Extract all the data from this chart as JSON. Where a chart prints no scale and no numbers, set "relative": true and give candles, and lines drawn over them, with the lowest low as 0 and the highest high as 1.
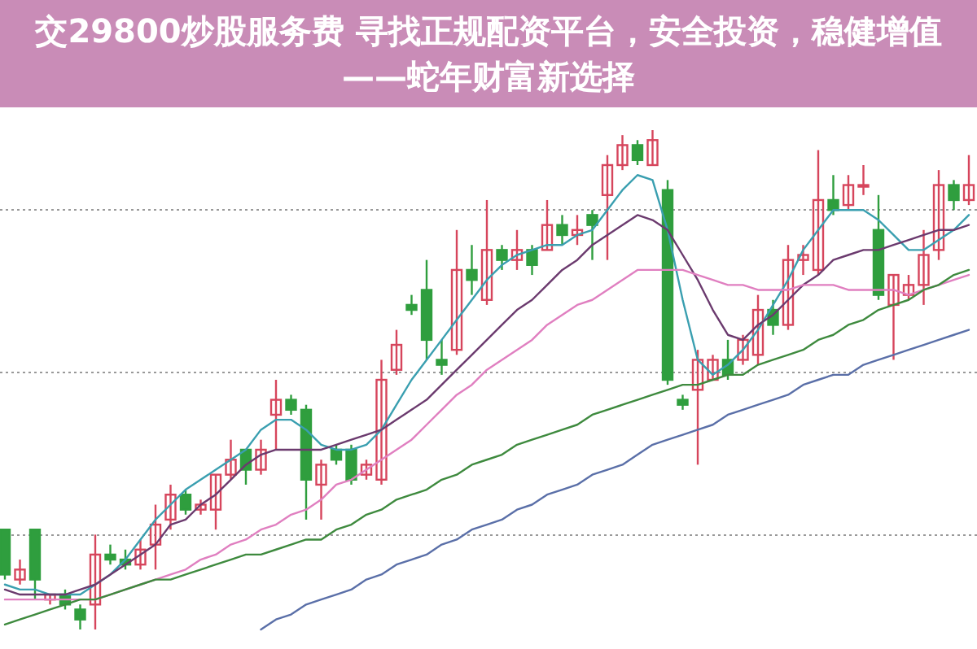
{
  "chart_data": {
    "type": "candlestick",
    "title": "交29800炒股服务费 寻找正规配资平台，安全投资，稳健增值——蛇年财富新选择",
    "relative": true,
    "grid": "y",
    "categories": [
      null,
      null,
      null,
      null,
      null,
      null,
      null,
      null,
      null,
      null,
      null,
      null,
      null,
      null,
      null,
      null,
      null,
      null,
      null,
      null,
      null,
      null,
      null,
      null,
      null,
      null,
      null,
      null,
      null,
      null,
      null,
      null,
      null,
      null,
      null,
      null,
      null,
      null,
      null,
      null,
      null,
      null,
      null,
      null,
      null,
      null,
      null,
      null,
      null,
      null,
      null,
      null,
      null,
      null,
      null,
      null,
      null,
      null,
      null,
      null,
      null,
      null,
      null,
      null,
      null
    ],
    "ohlc": [
      [
        0.2,
        0.2,
        0.1,
        0.11
      ],
      [
        0.1,
        0.14,
        0.09,
        0.12
      ],
      [
        0.2,
        0.2,
        0.06,
        0.1
      ],
      [
        0.06,
        0.07,
        0.05,
        0.07
      ],
      [
        0.07,
        0.08,
        0.04,
        0.05
      ],
      [
        0.04,
        0.05,
        0,
        0.02
      ],
      [
        0.05,
        0.19,
        0,
        0.15
      ],
      [
        0.15,
        0.17,
        0.13,
        0.14
      ],
      [
        0.14,
        0.16,
        0.12,
        0.13
      ],
      [
        0.13,
        0.18,
        0.12,
        0.16
      ],
      [
        0.17,
        0.25,
        0.12,
        0.21
      ],
      [
        0.22,
        0.29,
        0.2,
        0.27
      ],
      [
        0.27,
        0.28,
        0.23,
        0.24
      ],
      [
        0.24,
        0.26,
        0.23,
        0.25
      ],
      [
        0.24,
        0.31,
        0.2,
        0.31
      ],
      [
        0.31,
        0.38,
        0.3,
        0.34
      ],
      [
        0.36,
        0.36,
        0.29,
        0.32
      ],
      [
        0.32,
        0.38,
        0.31,
        0.36
      ],
      [
        0.43,
        0.5,
        0.36,
        0.46
      ],
      [
        0.46,
        0.47,
        0.43,
        0.44
      ],
      [
        0.44,
        0.45,
        0.22,
        0.3
      ],
      [
        0.29,
        0.34,
        0.22,
        0.33
      ],
      [
        0.36,
        0.37,
        0.33,
        0.34
      ],
      [
        0.36,
        0.37,
        0.29,
        0.3
      ],
      [
        0.31,
        0.34,
        0.3,
        0.33
      ],
      [
        0.3,
        0.54,
        0.29,
        0.5
      ],
      [
        0.52,
        0.6,
        0.51,
        0.57
      ],
      [
        0.65,
        0.67,
        0.63,
        0.64
      ],
      [
        0.68,
        0.74,
        0.54,
        0.58
      ],
      [
        0.54,
        0.58,
        0.51,
        0.53
      ],
      [
        0.56,
        0.8,
        0.55,
        0.72
      ],
      [
        0.72,
        0.77,
        0.67,
        0.7
      ],
      [
        0.66,
        0.86,
        0.65,
        0.76
      ],
      [
        0.76,
        0.77,
        0.72,
        0.74
      ],
      [
        0.74,
        0.8,
        0.72,
        0.76
      ],
      [
        0.76,
        0.77,
        0.71,
        0.73
      ],
      [
        0.76,
        0.86,
        0.76,
        0.81
      ],
      [
        0.81,
        0.83,
        0.77,
        0.79
      ],
      [
        0.79,
        0.83,
        0.77,
        0.8
      ],
      [
        0.83,
        0.84,
        0.74,
        0.81
      ],
      [
        0.87,
        0.95,
        0.74,
        0.93
      ],
      [
        0.93,
        0.99,
        0.92,
        0.97
      ],
      [
        0.97,
        0.98,
        0.93,
        0.94
      ],
      [
        0.93,
        1.0,
        0.93,
        0.98
      ],
      [
        0.88,
        0.9,
        0.49,
        0.5
      ],
      [
        0.46,
        0.47,
        0.44,
        0.45
      ],
      [
        0.48,
        0.56,
        0.33,
        0.54
      ],
      [
        0.5,
        0.55,
        0.5,
        0.54
      ],
      [
        0.54,
        0.58,
        0.5,
        0.51
      ],
      [
        0.54,
        0.59,
        0.53,
        0.58
      ],
      [
        0.55,
        0.67,
        0.53,
        0.64
      ],
      [
        0.64,
        0.66,
        0.59,
        0.61
      ],
      [
        0.61,
        0.77,
        0.6,
        0.74
      ],
      [
        0.74,
        0.77,
        0.71,
        0.75
      ],
      [
        0.72,
        0.96,
        0.71,
        0.86
      ],
      [
        0.86,
        0.91,
        0.83,
        0.84
      ],
      [
        0.85,
        0.91,
        0.84,
        0.89
      ],
      [
        0.89,
        0.93,
        0.87,
        0.89
      ],
      [
        0.8,
        0.87,
        0.66,
        0.67
      ],
      [
        0.65,
        0.71,
        0.54,
        0.71
      ],
      [
        0.67,
        0.71,
        0.66,
        0.69
      ],
      [
        0.69,
        0.8,
        0.65,
        0.75
      ],
      [
        0.76,
        0.92,
        0.74,
        0.89
      ],
      [
        0.89,
        0.9,
        0.84,
        0.86
      ],
      [
        0.86,
        0.95,
        0.85,
        0.89
      ]
    ],
    "series": [
      {
        "type": "line",
        "color": "#3a9fb0",
        "values": [
          0.09,
          0.08,
          0.08,
          0.07,
          0.07,
          0.07,
          0.09,
          0.11,
          0.14,
          0.18,
          0.22,
          0.25,
          0.28,
          0.3,
          0.32,
          0.34,
          0.36,
          0.4,
          0.42,
          0.42,
          0.4,
          0.37,
          0.36,
          0.36,
          0.37,
          0.4,
          0.45,
          0.5,
          0.54,
          0.58,
          0.62,
          0.66,
          0.7,
          0.73,
          0.75,
          0.76,
          0.77,
          0.77,
          0.79,
          0.8,
          0.84,
          0.88,
          0.91,
          0.9,
          0.8,
          0.66,
          0.54,
          0.51,
          0.53,
          0.56,
          0.6,
          0.65,
          0.7,
          0.76,
          0.8,
          0.84,
          0.84,
          0.84,
          0.82,
          0.79,
          0.76,
          0.76,
          0.78,
          0.8,
          0.83
        ]
      },
      {
        "type": "line",
        "color": "#6b3a6e",
        "values": [
          0.08,
          0.07,
          0.07,
          0.07,
          0.07,
          0.08,
          0.09,
          0.11,
          0.13,
          0.15,
          0.17,
          0.21,
          0.22,
          0.25,
          0.27,
          0.3,
          0.33,
          0.35,
          0.36,
          0.36,
          0.36,
          0.36,
          0.37,
          0.38,
          0.39,
          0.4,
          0.42,
          0.44,
          0.46,
          0.49,
          0.52,
          0.55,
          0.58,
          0.61,
          0.64,
          0.66,
          0.69,
          0.72,
          0.74,
          0.77,
          0.79,
          0.81,
          0.83,
          0.82,
          0.8,
          0.75,
          0.7,
          0.64,
          0.59,
          0.58,
          0.61,
          0.63,
          0.66,
          0.69,
          0.71,
          0.74,
          0.75,
          0.76,
          0.76,
          0.77,
          0.78,
          0.79,
          0.8,
          0.8,
          0.81
        ]
      },
      {
        "type": "line",
        "color": "#e07fc0",
        "values": [
          0.06,
          0.06,
          0.06,
          0.06,
          0.06,
          0.06,
          0.06,
          0.07,
          0.08,
          0.09,
          0.1,
          0.11,
          0.12,
          0.14,
          0.15,
          0.17,
          0.18,
          0.2,
          0.21,
          0.23,
          0.24,
          0.26,
          0.29,
          0.3,
          0.32,
          0.34,
          0.36,
          0.38,
          0.41,
          0.44,
          0.47,
          0.49,
          0.52,
          0.54,
          0.56,
          0.58,
          0.61,
          0.63,
          0.65,
          0.66,
          0.68,
          0.7,
          0.72,
          0.72,
          0.72,
          0.72,
          0.71,
          0.7,
          0.69,
          0.69,
          0.68,
          0.68,
          0.68,
          0.69,
          0.69,
          0.69,
          0.68,
          0.68,
          0.68,
          0.68,
          0.67,
          0.68,
          0.69,
          0.7,
          0.71
        ]
      },
      {
        "type": "line",
        "color": "#3e8a3e",
        "values": [
          0.01,
          0.02,
          0.03,
          0.04,
          0.05,
          0.06,
          0.06,
          0.07,
          0.08,
          0.09,
          0.1,
          0.1,
          0.11,
          0.12,
          0.13,
          0.14,
          0.15,
          0.15,
          0.16,
          0.17,
          0.18,
          0.18,
          0.2,
          0.21,
          0.23,
          0.24,
          0.26,
          0.27,
          0.28,
          0.3,
          0.31,
          0.33,
          0.34,
          0.35,
          0.37,
          0.38,
          0.39,
          0.4,
          0.41,
          0.43,
          0.44,
          0.45,
          0.46,
          0.47,
          0.48,
          0.49,
          0.49,
          0.5,
          0.51,
          0.51,
          0.53,
          0.54,
          0.55,
          0.56,
          0.58,
          0.59,
          0.61,
          0.62,
          0.64,
          0.65,
          0.66,
          0.68,
          0.69,
          0.71,
          0.72
        ]
      },
      {
        "type": "line",
        "color": "#5a6fa8",
        "values": [
          null,
          null,
          null,
          null,
          null,
          null,
          null,
          null,
          null,
          null,
          null,
          null,
          null,
          null,
          null,
          null,
          null,
          0.0,
          0.02,
          0.03,
          0.05,
          0.06,
          0.07,
          0.08,
          0.1,
          0.11,
          0.13,
          0.14,
          0.15,
          0.17,
          0.18,
          0.2,
          0.21,
          0.22,
          0.24,
          0.25,
          0.27,
          0.28,
          0.29,
          0.31,
          0.32,
          0.33,
          0.35,
          0.37,
          0.38,
          0.39,
          0.4,
          0.41,
          0.43,
          0.44,
          0.45,
          0.46,
          0.47,
          0.49,
          0.5,
          0.51,
          0.51,
          0.53,
          0.54,
          0.55,
          0.56,
          0.57,
          0.58,
          0.59,
          0.6
        ]
      }
    ]
  }
}
